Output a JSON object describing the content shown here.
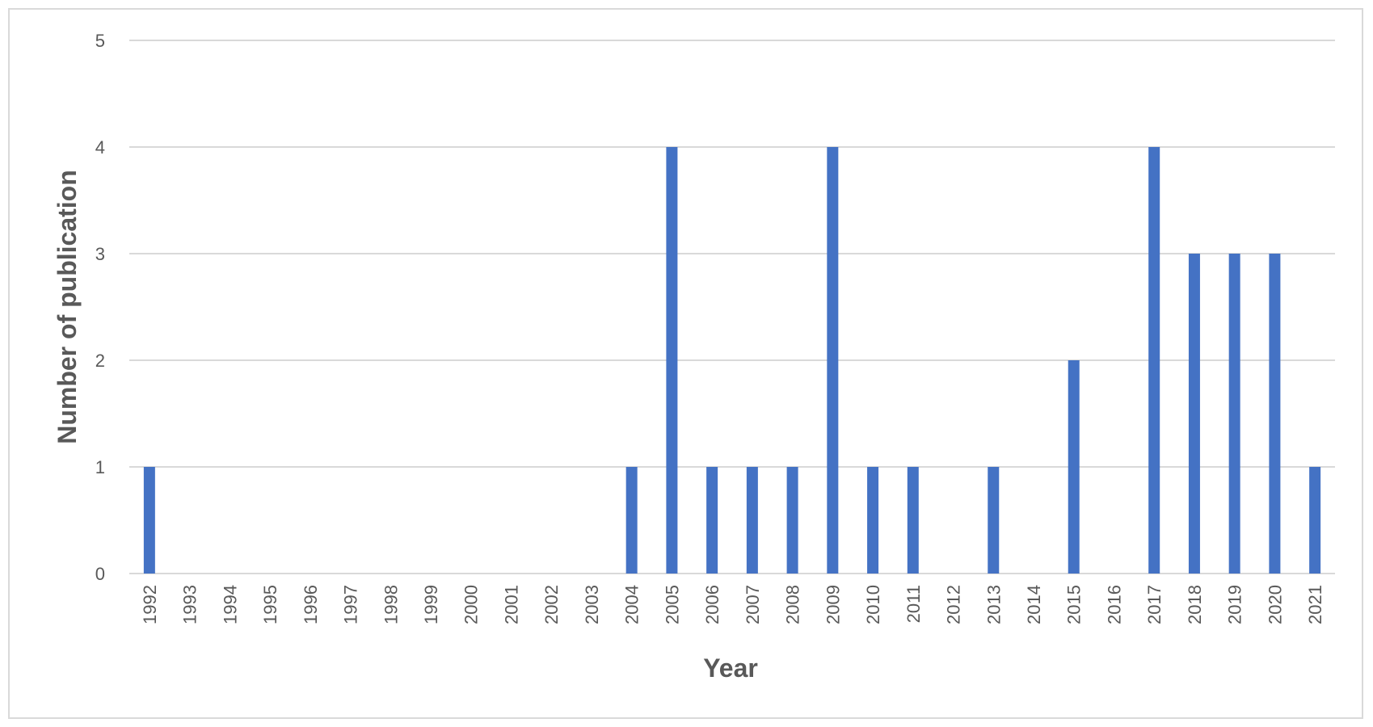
{
  "chart_data": {
    "type": "bar",
    "title": "",
    "xlabel": "Year",
    "ylabel": "Number of publication",
    "ylim": [
      0,
      5
    ],
    "yticks": [
      "0",
      "1",
      "2",
      "3",
      "4",
      "5"
    ],
    "grid": "horizontal",
    "legend": "none",
    "bar_color": "#4472c4",
    "grid_color": "#d9d9d9",
    "text_color": "#595959",
    "categories": [
      "1992",
      "1993",
      "1994",
      "1995",
      "1996",
      "1997",
      "1998",
      "1999",
      "2000",
      "2001",
      "2002",
      "2003",
      "2004",
      "2005",
      "2006",
      "2007",
      "2008",
      "2009",
      "2010",
      "2011",
      "2012",
      "2013",
      "2014",
      "2015",
      "2016",
      "2017",
      "2018",
      "2019",
      "2020",
      "2021"
    ],
    "values": [
      1,
      0,
      0,
      0,
      0,
      0,
      0,
      0,
      0,
      0,
      0,
      0,
      1,
      4,
      1,
      1,
      1,
      4,
      1,
      1,
      0,
      1,
      0,
      2,
      0,
      4,
      3,
      3,
      3,
      1
    ]
  }
}
